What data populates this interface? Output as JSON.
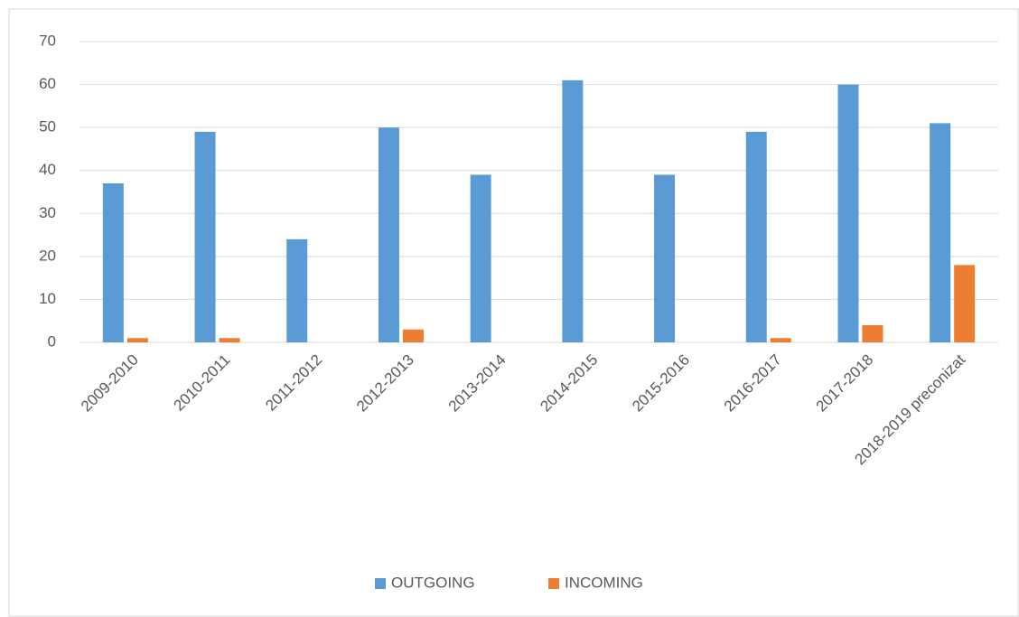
{
  "chart_data": {
    "type": "bar",
    "categories": [
      "2009-2010",
      "2010-2011",
      "2011-2012",
      "2012-2013",
      "2013-2014",
      "2014-2015",
      "2015-2016",
      "2016-2017",
      "2017-2018",
      "2018-2019 preconizat"
    ],
    "series": [
      {
        "name": "OUTGOING",
        "color": "#5b9bd5",
        "values": [
          37,
          49,
          24,
          50,
          39,
          61,
          39,
          49,
          60,
          51
        ]
      },
      {
        "name": "INCOMING",
        "color": "#ed7d31",
        "values": [
          1,
          1,
          0,
          3,
          0,
          0,
          0,
          1,
          4,
          18
        ]
      }
    ],
    "ylim": [
      0,
      70
    ],
    "yticks": [
      0,
      10,
      20,
      30,
      40,
      50,
      60,
      70
    ],
    "grid": true,
    "legend": "bottom"
  }
}
